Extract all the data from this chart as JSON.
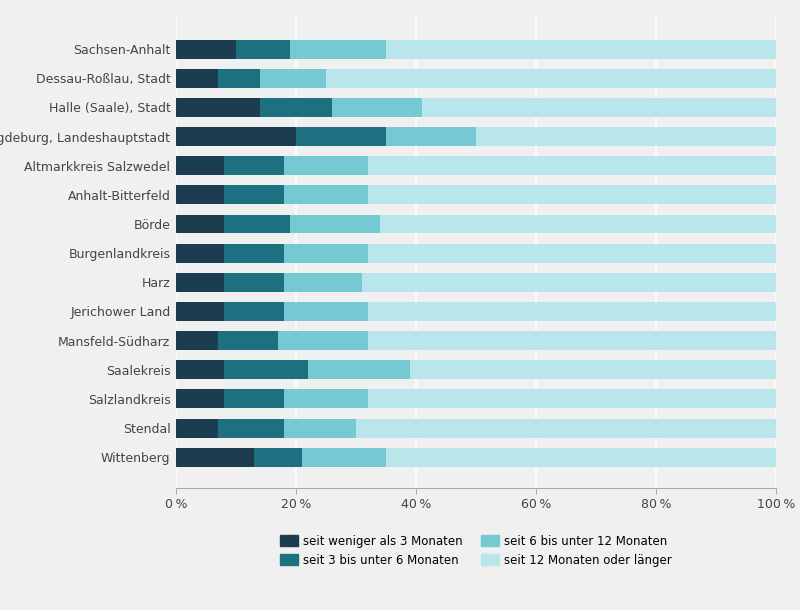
{
  "categories": [
    "Sachsen-Anhalt",
    "Dessau-Roßlau, Stadt",
    "Halle (Saale), Stadt",
    "Magdeburg, Landeshauptstadt",
    "Altmarkkreis Salzwedel",
    "Anhalt-Bitterfeld",
    "Börde",
    "Burgenlandkreis",
    "Harz",
    "Jerichower Land",
    "Mansfeld-Südharz",
    "Saalekreis",
    "Salzlandkreis",
    "Stendal",
    "Wittenberg"
  ],
  "series": {
    "seit weniger als 3 Monaten": [
      10,
      7,
      14,
      20,
      8,
      8,
      8,
      8,
      8,
      8,
      7,
      8,
      8,
      7,
      13
    ],
    "seit 3 bis unter 6 Monaten": [
      9,
      7,
      12,
      15,
      10,
      10,
      11,
      10,
      10,
      10,
      10,
      14,
      10,
      11,
      8
    ],
    "seit 6 bis unter 12 Monaten": [
      16,
      11,
      15,
      15,
      14,
      14,
      15,
      14,
      13,
      14,
      15,
      17,
      14,
      12,
      14
    ],
    "seit 12 Monaten oder länger": [
      65,
      75,
      59,
      50,
      68,
      68,
      66,
      68,
      69,
      68,
      68,
      61,
      68,
      70,
      65
    ]
  },
  "colors": {
    "seit weniger als 3 Monaten": "#1b3d4f",
    "seit 3 bis unter 6 Monaten": "#1d7080",
    "seit 6 bis unter 12 Monaten": "#74c9d2",
    "seit 12 Monaten oder länger": "#b8e6eb"
  },
  "xlim": [
    0,
    100
  ],
  "xtick_labels": [
    "0 %",
    "20 %",
    "40 %",
    "60 %",
    "80 %",
    "100 %"
  ],
  "xtick_values": [
    0,
    20,
    40,
    60,
    80,
    100
  ],
  "background_color": "#f0f0f0",
  "bar_height": 0.65,
  "legend_labels": [
    "seit weniger als 3 Monaten",
    "seit 3 bis unter 6 Monaten",
    "seit 6 bis unter 12 Monaten",
    "seit 12 Monaten oder länger"
  ],
  "legend_ncol": 2,
  "figsize": [
    8.0,
    6.1
  ],
  "dpi": 100
}
